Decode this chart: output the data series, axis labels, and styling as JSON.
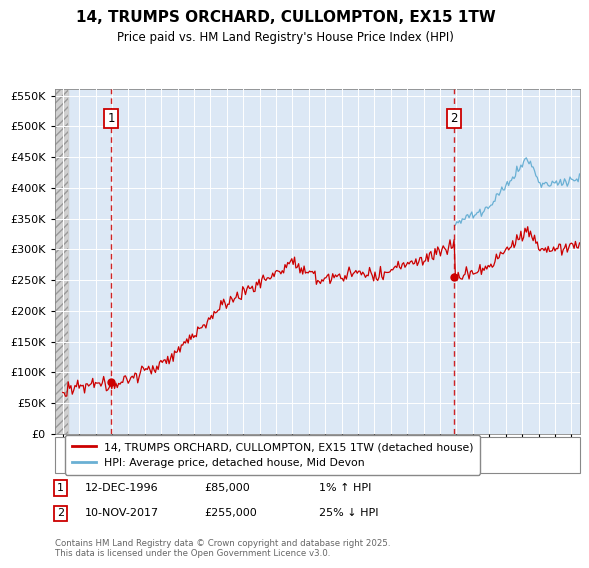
{
  "title": "14, TRUMPS ORCHARD, CULLOMPTON, EX15 1TW",
  "subtitle": "Price paid vs. HM Land Registry's House Price Index (HPI)",
  "legend_line1": "14, TRUMPS ORCHARD, CULLOMPTON, EX15 1TW (detached house)",
  "legend_line2": "HPI: Average price, detached house, Mid Devon",
  "footnote": "Contains HM Land Registry data © Crown copyright and database right 2025.\nThis data is licensed under the Open Government Licence v3.0.",
  "sale1_date": "12-DEC-1996",
  "sale1_price": "£85,000",
  "sale1_hpi": "1% ↑ HPI",
  "sale2_date": "10-NOV-2017",
  "sale2_price": "£255,000",
  "sale2_hpi": "25% ↓ HPI",
  "hpi_color": "#6ab0d4",
  "price_color": "#cc0000",
  "sale1_x": 1996.95,
  "sale2_x": 2017.86,
  "sale1_y": 85000,
  "sale2_y": 255000,
  "ylim": [
    0,
    560000
  ],
  "xlim_start": 1993.5,
  "xlim_end": 2025.5,
  "bg_color": "#ffffff",
  "plot_bg": "#dce8f5",
  "grid_color": "#ffffff",
  "hatch_bg": "#cccccc"
}
